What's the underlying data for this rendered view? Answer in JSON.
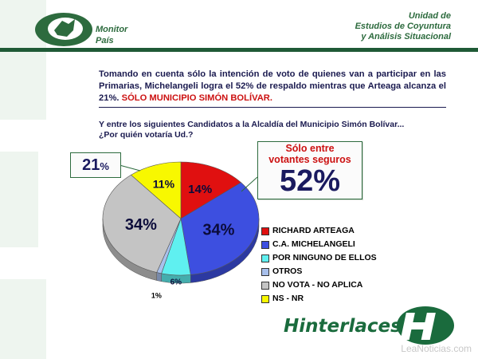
{
  "header": {
    "logo_left_line1": "Monitor",
    "logo_left_line2": "País",
    "unit_line1": "Unidad de",
    "unit_line2": "Estudios de Coyuntura",
    "unit_line3": "y Análisis Situacional"
  },
  "intro": {
    "text": "Tomando en cuenta sólo la intención de voto de quienes van a participar en las Primarias, Michelangeli logra el 52% de respaldo mientras que Arteaga alcanza el 21%.",
    "highlight": "SÓLO MUNICIPIO SIMÓN BOLÍVAR."
  },
  "question": {
    "line1": "Y entre los siguientes Candidatos a la Alcaldía del Municipio Simón Bolívar...",
    "line2": "¿Por quién votaría Ud.?"
  },
  "callouts": {
    "right_line1": "Sólo entre",
    "right_line2": "votantes seguros",
    "right_big": "52%",
    "left_value": "21",
    "left_pct": "%"
  },
  "chart_data": {
    "type": "pie",
    "title": "",
    "slices": [
      {
        "label": "RICHARD ARTEAGA",
        "value": 14,
        "display": "14%",
        "color": "#e01010"
      },
      {
        "label": "C.A. MICHELANGELI",
        "value": 34,
        "display": "34%",
        "color": "#3d4fe0"
      },
      {
        "label": "POR NINGUNO DE ELLOS",
        "value": 6,
        "display": "6%",
        "color": "#5ff0f0"
      },
      {
        "label": "OTROS",
        "value": 1,
        "display": "1%",
        "color": "#a8c0ec"
      },
      {
        "label": "NO VOTA - NO APLICA",
        "value": 34,
        "display": "34%",
        "color": "#c4c4c4"
      },
      {
        "label": "NS - NR",
        "value": 11,
        "display": "11%",
        "color": "#f8f800"
      }
    ],
    "legend_position": "right"
  },
  "footer": {
    "brand": "Hinterlaces",
    "watermark": "LeaNoticias.com"
  }
}
